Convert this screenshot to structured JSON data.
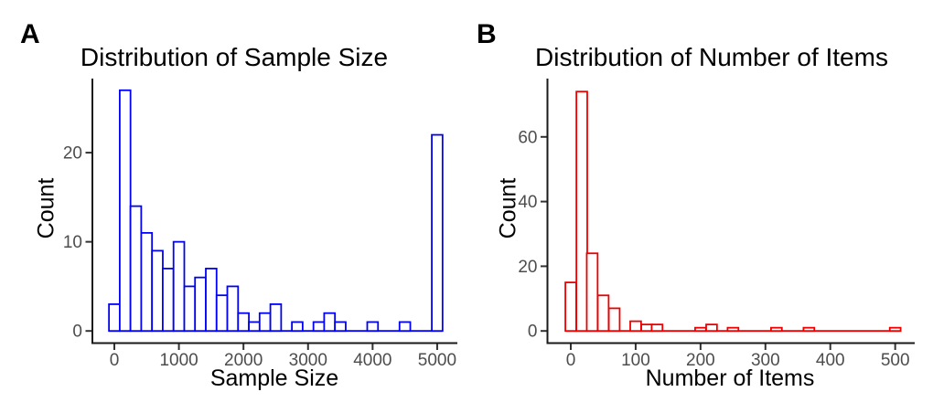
{
  "figure": {
    "background": "#FFFFFF",
    "text_color": "#000000",
    "tick_label_color": "#4D4D4D",
    "axis_color": "#1A1A1A"
  },
  "chart_data": [
    {
      "type": "bar",
      "subtype": "histogram",
      "panel_label": "A",
      "title": "Distribution of Sample Size",
      "xlabel": "Sample Size",
      "ylabel": "Count",
      "bar_edge_color": "#0202F5",
      "bar_fill_color": "#FFFFFF",
      "grid": "off",
      "legend": "none",
      "x_ticks": [
        0,
        1000,
        2000,
        3000,
        4000,
        5000
      ],
      "y_ticks": [
        0,
        10,
        20
      ],
      "xlim": [
        -340,
        5340
      ],
      "ylim": [
        -1.4,
        28.4
      ],
      "bin_width": 166.7,
      "n_total": 145,
      "bin_centers": [
        0,
        167,
        333,
        500,
        667,
        833,
        1000,
        1167,
        1333,
        1500,
        1667,
        1833,
        2000,
        2167,
        2333,
        2500,
        2667,
        2833,
        3000,
        3167,
        3333,
        3500,
        3667,
        3833,
        4000,
        4167,
        4333,
        4500,
        4667,
        4833,
        5000
      ],
      "counts": [
        3,
        27,
        14,
        11,
        9,
        7,
        10,
        5,
        6,
        7,
        4,
        5,
        2,
        1,
        2,
        3,
        0,
        1,
        0,
        1,
        2,
        1,
        0,
        0,
        1,
        0,
        0,
        1,
        0,
        0,
        22
      ]
    },
    {
      "type": "bar",
      "subtype": "histogram",
      "panel_label": "B",
      "title": "Distribution of Number of Items",
      "xlabel": "Number of Items",
      "ylabel": "Count",
      "bar_edge_color": "#EE0000",
      "bar_fill_color": "#FFFFFF",
      "grid": "off",
      "legend": "none",
      "x_ticks": [
        0,
        100,
        200,
        300,
        400,
        500
      ],
      "y_ticks": [
        0,
        20,
        40,
        60
      ],
      "xlim": [
        -34,
        534
      ],
      "ylim": [
        -3.7,
        77.7
      ],
      "bin_width": 16.7,
      "n_total": 145,
      "bin_centers": [
        0,
        17,
        33,
        50,
        67,
        83,
        100,
        117,
        133,
        150,
        167,
        183,
        200,
        217,
        233,
        250,
        267,
        283,
        300,
        317,
        333,
        350,
        367,
        383,
        400,
        417,
        433,
        450,
        467,
        483,
        500
      ],
      "counts": [
        15,
        74,
        24,
        11,
        7,
        0,
        3,
        2,
        2,
        0,
        0,
        0,
        1,
        2,
        0,
        1,
        0,
        0,
        0,
        1,
        0,
        0,
        1,
        0,
        0,
        0,
        0,
        0,
        0,
        0,
        1
      ]
    }
  ]
}
